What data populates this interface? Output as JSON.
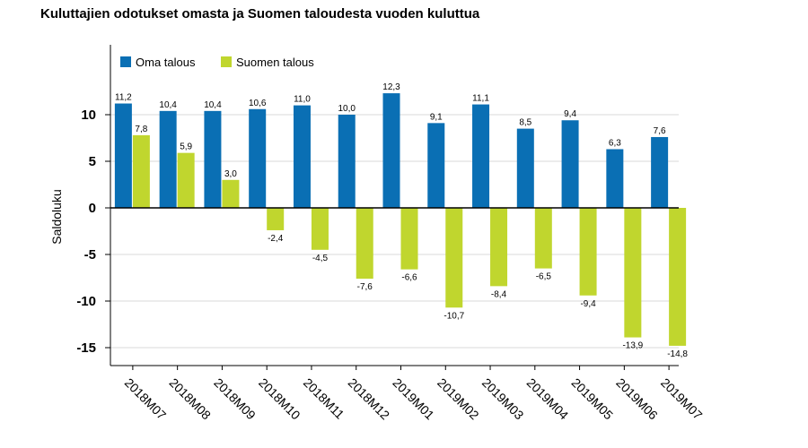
{
  "chart_data": {
    "type": "bar",
    "title": "Kuluttajien odotukset omasta ja Suomen taloudesta vuoden kuluttua",
    "xlabel": "",
    "ylabel": "Saldoluku",
    "ylim": [
      -17,
      17
    ],
    "yticks": [
      "10",
      "5",
      "0",
      "-5",
      "-10",
      "-15"
    ],
    "grid": true,
    "legend_position": "top-left",
    "categories": [
      "2018M07",
      "2018M08",
      "2018M09",
      "2018M10",
      "2018M11",
      "2018M12",
      "2019M01",
      "2019M02",
      "2019M03",
      "2019M04",
      "2019M05",
      "2019M06",
      "2019M07"
    ],
    "series": [
      {
        "name": "Oma talous",
        "color": "#0a6fb4",
        "values": [
          11.2,
          10.4,
          10.4,
          10.6,
          11.0,
          10.0,
          12.3,
          9.1,
          11.1,
          8.5,
          9.4,
          6.3,
          7.6
        ],
        "labels": [
          "11,2",
          "10,4",
          "10,4",
          "10,6",
          "11,0",
          "10,0",
          "12,3",
          "9,1",
          "11,1",
          "8,5",
          "9,4",
          "6,3",
          "7,6"
        ]
      },
      {
        "name": "Suomen talous",
        "color": "#c0d62e",
        "values": [
          7.8,
          5.9,
          3.0,
          -2.4,
          -4.5,
          -7.6,
          -6.6,
          -10.7,
          -8.4,
          -6.5,
          -9.4,
          -13.9,
          -14.8
        ],
        "labels": [
          "7,8",
          "5,9",
          "3,0",
          "-2,4",
          "-4,5",
          "-7,6",
          "-6,6",
          "-10,7",
          "-8,4",
          "-6,5",
          "-9,4",
          "-13,9",
          "-14,8"
        ]
      }
    ]
  }
}
